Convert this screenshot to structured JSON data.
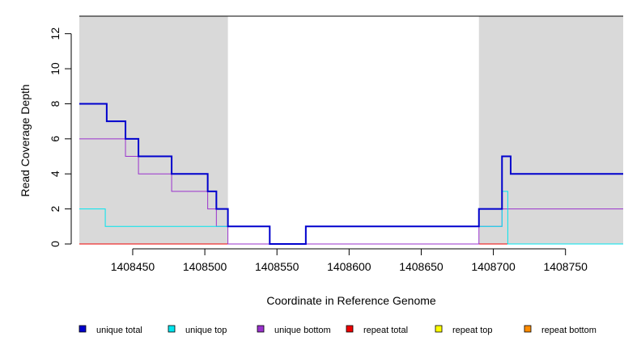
{
  "chart_data": {
    "type": "line",
    "title": "",
    "xlabel": "Coordinate in Reference Genome",
    "ylabel": "Read Coverage Depth",
    "xlim": [
      1408413,
      1408790
    ],
    "ylim": [
      0,
      13
    ],
    "x_ticks": [
      1408450,
      1408500,
      1408550,
      1408600,
      1408650,
      1408700,
      1408750
    ],
    "x_tick_labels": [
      "1408450",
      "1408500",
      "1408550",
      "1408600",
      "1408650",
      "1408700",
      "1408750"
    ],
    "y_ticks": [
      0,
      2,
      4,
      6,
      8,
      10,
      12
    ],
    "y_tick_labels": [
      "0",
      "2",
      "4",
      "6",
      "8",
      "10",
      "12"
    ],
    "shaded_regions": [
      {
        "x": [
          1408413,
          1408516
        ],
        "color": "#d9d9d9"
      },
      {
        "x": [
          1408690,
          1408790
        ],
        "color": "#d9d9d9"
      }
    ],
    "grid": false,
    "legend_position": "bottom",
    "series": [
      {
        "name": "unique total",
        "color": "#0000cd",
        "line_width": 2,
        "x": [
          1408413,
          1408432,
          1408432,
          1408445,
          1408445,
          1408454,
          1408454,
          1408477,
          1408477,
          1408502,
          1408502,
          1408508,
          1408508,
          1408516,
          1408516,
          1408545,
          1408545,
          1408570,
          1408570,
          1408690,
          1408690,
          1408706,
          1408706,
          1408712,
          1408712,
          1408790
        ],
        "y": [
          8,
          8,
          7,
          7,
          6,
          6,
          5,
          5,
          4,
          4,
          3,
          3,
          2,
          2,
          1,
          1,
          0,
          0,
          1,
          1,
          2,
          2,
          5,
          5,
          4,
          4
        ]
      },
      {
        "name": "unique top",
        "color": "#00e5ee",
        "line_width": 1,
        "x": [
          1408413,
          1408431,
          1408431,
          1408508,
          1408508,
          1408516,
          1408516,
          1408545,
          1408545,
          1408570,
          1408570,
          1408690,
          1408690,
          1408706,
          1408706,
          1408710,
          1408710,
          1408790
        ],
        "y": [
          2,
          2,
          1,
          1,
          1,
          1,
          1,
          1,
          0,
          0,
          1,
          1,
          1,
          1,
          3,
          3,
          0,
          0
        ]
      },
      {
        "name": "unique bottom",
        "color": "#9a32cd",
        "line_width": 1,
        "x": [
          1408413,
          1408445,
          1408445,
          1408454,
          1408454,
          1408477,
          1408477,
          1408502,
          1408502,
          1408508,
          1408508,
          1408516,
          1408516,
          1408690,
          1408690,
          1408706,
          1408706,
          1408790
        ],
        "y": [
          6,
          6,
          5,
          5,
          4,
          4,
          3,
          3,
          2,
          2,
          1,
          1,
          0,
          0,
          1,
          1,
          2,
          2
        ]
      },
      {
        "name": "repeat total",
        "color": "#ee0000",
        "line_width": 1,
        "x": [
          1408413,
          1408790
        ],
        "y": [
          0,
          0
        ]
      },
      {
        "name": "repeat top",
        "color": "#ffff00",
        "line_width": 1,
        "x": [
          1408413,
          1408790
        ],
        "y": [
          0,
          0
        ]
      },
      {
        "name": "repeat bottom",
        "color": "#ff8c00",
        "line_width": 1,
        "x": [
          1408413,
          1408790
        ],
        "y": [
          0,
          0
        ]
      }
    ]
  }
}
